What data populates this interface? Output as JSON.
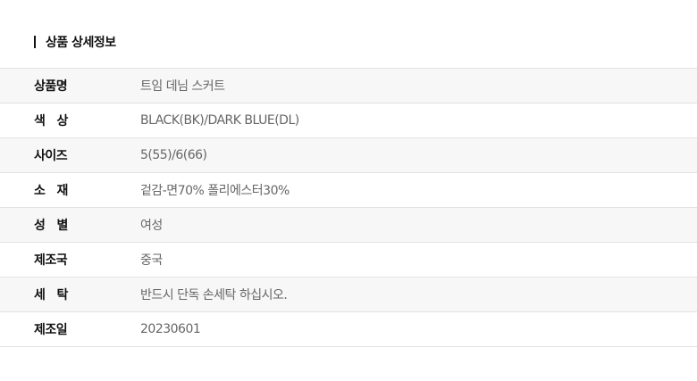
{
  "section_title": "상품 상세정보",
  "rows": [
    {
      "label": "상품명",
      "value": "트임 데님 스커트"
    },
    {
      "label": "색   상",
      "value": "BLACK(BK)/DARK BLUE(DL)"
    },
    {
      "label": "사이즈",
      "value": "5(55)/6(66)"
    },
    {
      "label": "소   재",
      "value": "겉감-면70% 폴리에스터30%"
    },
    {
      "label": "성   별",
      "value": "여성"
    },
    {
      "label": "제조국",
      "value": "중국"
    },
    {
      "label": "세   탁",
      "value": "반드시 단독 손세탁 하십시오."
    },
    {
      "label": "제조일",
      "value": "20230601"
    }
  ]
}
